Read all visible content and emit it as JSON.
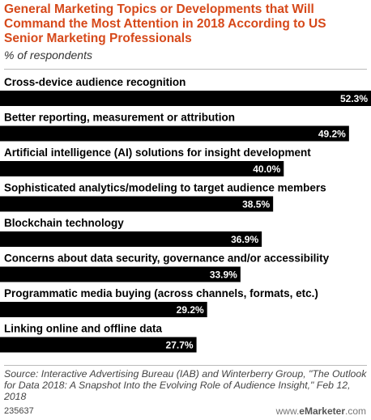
{
  "chart_data": {
    "type": "bar",
    "orientation": "horizontal",
    "title": "General Marketing Topics or Developments that Will Command the Most Attention in 2018 According to US Senior Marketing Professionals",
    "subtitle": "% of respondents",
    "categories": [
      "Cross-device audience recognition",
      "Better reporting, measurement or attribution",
      "Artificial intelligence (AI) solutions for insight development",
      "Sophisticated analytics/modeling to target audience members",
      "Blockchain technology",
      "Concerns about data security, governance and/or accessibility",
      "Programmatic media buying (across channels, formats, etc.)",
      "Linking online and offline data"
    ],
    "values": [
      52.3,
      49.2,
      40.0,
      38.5,
      36.9,
      33.9,
      29.2,
      27.7
    ],
    "value_labels": [
      "52.3%",
      "49.2%",
      "40.0%",
      "38.5%",
      "36.9%",
      "33.9%",
      "29.2%",
      "27.7%"
    ],
    "xlim": [
      0,
      52.3
    ],
    "bar_color": "#000000",
    "title_color": "#d6491a"
  },
  "source": "Source: Interactive Advertising Bureau (IAB) and Winterberry Group, \"The Outlook for Data 2018: A Snapshot Into the Evolving Role of Audience Insight,\" Feb 12, 2018",
  "footer": {
    "chart_id": "235637",
    "brand_prefix": "www.",
    "brand_name": "eMarketer",
    "brand_suffix": ".com"
  }
}
